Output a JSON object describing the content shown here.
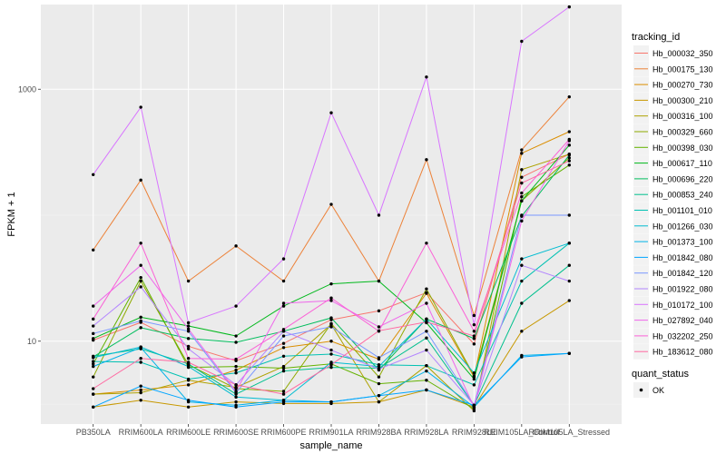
{
  "chart_data": {
    "type": "line",
    "xlabel": "sample_name",
    "ylabel": "FPKM + 1",
    "y_scale": "log10",
    "ylim": [
      2.2,
      4700
    ],
    "y_ticks": [
      10,
      1000
    ],
    "y_tick_labels": [
      "10",
      "1000"
    ],
    "grid": true,
    "legend_placement": "right",
    "categories": [
      "PB350LA",
      "RRIM600LA",
      "RRIM600LE",
      "RRIM600SE",
      "RRIM600PE",
      "RRIM901LA",
      "RRIM928BA",
      "RRIM928LA",
      "RRIM928LE",
      "RRIM105LA_Control",
      "RRIM105LA_Stressed"
    ],
    "category_labels": [
      "PB350LA",
      "RRIM600LA",
      "RRIM600LE",
      "RRIM600SE",
      "RRIM600PE",
      "RRIM901LA",
      "RRIM928BA",
      "RRIM928LA",
      "RRIM928LE",
      "RRIM105LA_Control",
      "RRIM105LA_Stressed"
    ],
    "legend_title": "tracking_id",
    "series": [
      {
        "name": "Hb_000032_350",
        "color": "#F8766D",
        "values": [
          10.2,
          14.1,
          9.1,
          7.0,
          9.6,
          14.8,
          17.4,
          24.3,
          9.5,
          200.0,
          305.0
        ]
      },
      {
        "name": "Hb_000175_130",
        "color": "#EC8239",
        "values": [
          53.0,
          190.0,
          30.0,
          57.0,
          30.0,
          122.0,
          30.0,
          276.0,
          16.0,
          330.0,
          870.0
        ]
      },
      {
        "name": "Hb_000270_730",
        "color": "#DB8E00",
        "values": [
          3.8,
          4.1,
          4.5,
          5.9,
          8.9,
          10.0,
          7.2,
          24.0,
          5.2,
          310.0,
          460.0
        ]
      },
      {
        "name": "Hb_000300_210",
        "color": "#C79800",
        "values": [
          3.0,
          3.4,
          3.0,
          3.3,
          3.2,
          3.2,
          3.3,
          4.1,
          3.0,
          12.0,
          21.0
        ]
      },
      {
        "name": "Hb_000316_100",
        "color": "#AEA200",
        "values": [
          3.8,
          3.9,
          4.9,
          4.3,
          6.3,
          13.6,
          3.3,
          6.4,
          2.8,
          230.0,
          305.0
        ]
      },
      {
        "name": "Hb_000329_660",
        "color": "#8FAA00",
        "values": [
          5.2,
          30.0,
          6.5,
          4.2,
          4.0,
          13.8,
          5.2,
          26.0,
          5.3,
          130.0,
          285.0
        ]
      },
      {
        "name": "Hb_000398_030",
        "color": "#64B200",
        "values": [
          6.6,
          32.0,
          6.2,
          6.3,
          6.1,
          6.6,
          4.6,
          4.9,
          2.9,
          140.0,
          250.0
        ]
      },
      {
        "name": "Hb_000617_110",
        "color": "#00B81B",
        "values": [
          10.5,
          15.5,
          13.2,
          11.0,
          19.0,
          28.5,
          30.0,
          14.0,
          5.0,
          130.0,
          360.0
        ]
      },
      {
        "name": "Hb_000696_220",
        "color": "#00BD5C",
        "values": [
          7.5,
          12.8,
          10.5,
          9.8,
          12.0,
          15.3,
          5.9,
          15.0,
          10.5,
          98.0,
          300.0
        ]
      },
      {
        "name": "Hb_000853_240",
        "color": "#00C08E",
        "values": [
          7.6,
          8.7,
          6.6,
          3.8,
          5.8,
          6.2,
          6.1,
          10.6,
          3.1,
          20.0,
          40.0
        ]
      },
      {
        "name": "Hb_001101_010",
        "color": "#00C1B2",
        "values": [
          6.9,
          6.8,
          5.0,
          5.6,
          7.6,
          7.9,
          6.5,
          6.4,
          4.5,
          30.0,
          60.0
        ]
      },
      {
        "name": "Hb_001266_030",
        "color": "#00BCD1",
        "values": [
          7.4,
          9.0,
          6.3,
          3.6,
          3.4,
          6.8,
          6.3,
          15.0,
          5.6,
          45.0,
          60.0
        ]
      },
      {
        "name": "Hb_001373_100",
        "color": "#00B3E9",
        "values": [
          6.3,
          8.9,
          3.3,
          3.1,
          3.4,
          3.3,
          3.7,
          5.8,
          3.0,
          7.7,
          8.0
        ]
      },
      {
        "name": "Hb_001842_080",
        "color": "#00A5FF",
        "values": [
          3.0,
          4.4,
          3.4,
          3.0,
          3.3,
          3.3,
          3.7,
          4.1,
          3.1,
          7.5,
          8.0
        ]
      },
      {
        "name": "Hb_001842_120",
        "color": "#7997FF",
        "values": [
          11.5,
          14.5,
          12.0,
          3.9,
          11.0,
          13.0,
          7.4,
          12.0,
          3.1,
          100.0,
          100.0
        ]
      },
      {
        "name": "Hb_001922_080",
        "color": "#B385FF",
        "values": [
          13.2,
          27.0,
          8.7,
          4.5,
          12.0,
          8.5,
          6.0,
          8.5,
          3.1,
          40.0,
          30.0
        ]
      },
      {
        "name": "Hb_010172_100",
        "color": "#D875FF",
        "values": [
          210.0,
          720.0,
          14.0,
          19.0,
          45.0,
          650.0,
          100.0,
          1250.0,
          13.5,
          2400.0,
          4500.0
        ]
      },
      {
        "name": "Hb_027892_040",
        "color": "#EF67EB",
        "values": [
          19.0,
          40.0,
          12.5,
          4.0,
          20.0,
          21.0,
          13.0,
          20.0,
          3.0,
          90.0,
          390.0
        ]
      },
      {
        "name": "Hb_032202_250",
        "color": "#FB61D7",
        "values": [
          15.0,
          60.0,
          7.3,
          7.2,
          12.4,
          22.0,
          12.0,
          60.0,
          12.0,
          150.0,
          400.0
        ]
      },
      {
        "name": "Hb_183612_080",
        "color": "#FF68A1",
        "values": [
          4.2,
          7.3,
          6.8,
          4.5,
          3.8,
          6.5,
          12.1,
          14.2,
          11.0,
          180.0,
          270.0
        ]
      }
    ],
    "secondary_legend": {
      "title": "quant_status",
      "entries": [
        "OK"
      ]
    }
  }
}
